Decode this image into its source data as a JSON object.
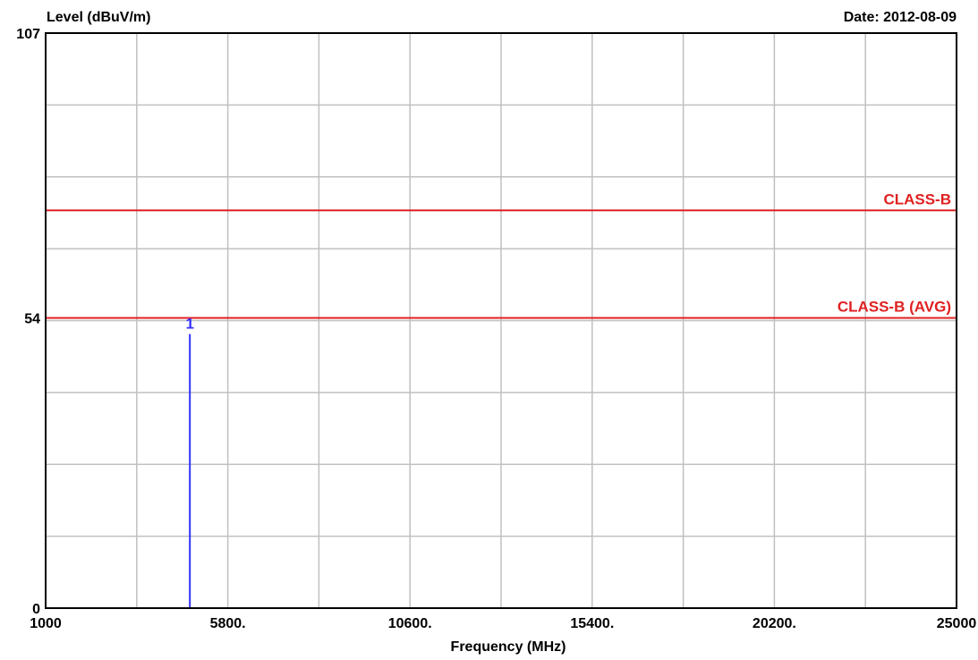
{
  "chart_data": {
    "type": "line",
    "ylabel": "Level (dBuV/m)",
    "xlabel": "Frequency (MHz)",
    "date_label": "Date: 2012-08-09",
    "xlim": [
      1000,
      25000
    ],
    "ylim": [
      0,
      107
    ],
    "x_ticks": [
      {
        "value": 1000,
        "label": "1000"
      },
      {
        "value": 5800,
        "label": "5800."
      },
      {
        "value": 10600,
        "label": "10600."
      },
      {
        "value": 15400,
        "label": "15400."
      },
      {
        "value": 20200,
        "label": "20200."
      },
      {
        "value": 25000,
        "label": "25000"
      }
    ],
    "x_grid": [
      3400,
      5800,
      8200,
      10600,
      13000,
      15400,
      17800,
      20200,
      22600
    ],
    "y_ticks": [
      {
        "value": 0,
        "label": "0"
      },
      {
        "value": 54,
        "label": "54"
      },
      {
        "value": 107,
        "label": "107"
      }
    ],
    "y_grid": [
      13.375,
      26.75,
      40.125,
      53.5,
      66.875,
      80.25,
      93.625
    ],
    "grid": true,
    "limit_lines": [
      {
        "name": "CLASS-B",
        "value": 74,
        "color": "#e02020"
      },
      {
        "name": "CLASS-B (AVG)",
        "value": 54,
        "color": "#e02020"
      }
    ],
    "markers": [
      {
        "label": "1",
        "x": 4800,
        "y": 51,
        "color": "#3333ff"
      }
    ]
  }
}
